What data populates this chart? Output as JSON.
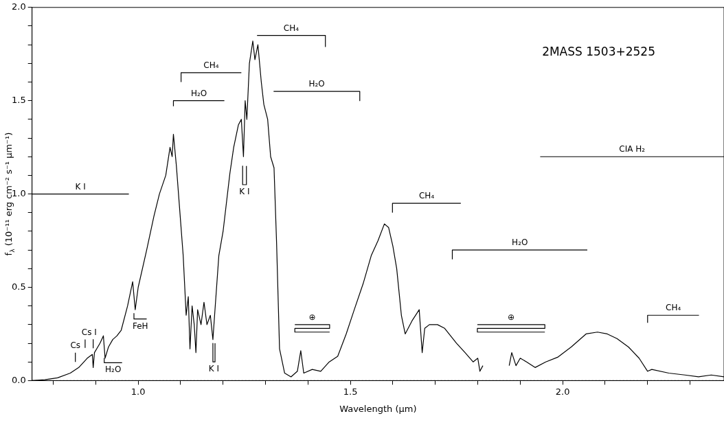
{
  "chart_data": {
    "type": "line",
    "xlabel": "Wavelength (μm)",
    "ylabel": "f$_{λ}$ (10⁻¹¹ erg cm⁻² s⁻¹ μm⁻¹)",
    "xlim": [
      0.75,
      2.38
    ],
    "xticks": [
      {
        "value": 0.8,
        "label": null
      },
      {
        "value": 0.9,
        "label": null
      },
      {
        "value": 1.0,
        "label": "1.0"
      },
      {
        "value": 1.1,
        "label": null
      },
      {
        "value": 1.2,
        "label": null
      },
      {
        "value": 1.3,
        "label": null
      },
      {
        "value": 1.4,
        "label": null
      },
      {
        "value": 1.5,
        "label": "1.5"
      },
      {
        "value": 1.6,
        "label": null
      },
      {
        "value": 1.7,
        "label": null
      },
      {
        "value": 1.8,
        "label": null
      },
      {
        "value": 1.9,
        "label": null
      },
      {
        "value": 2.0,
        "label": "2.0"
      },
      {
        "value": 2.1,
        "label": null
      },
      {
        "value": 2.2,
        "label": null
      },
      {
        "value": 2.3,
        "label": null
      }
    ],
    "ylim": [
      0,
      2
    ],
    "yticks": [
      {
        "value": 0,
        "label": "0.0"
      },
      {
        "value": 0.1,
        "label": null
      },
      {
        "value": 0.2,
        "label": null
      },
      {
        "value": 0.3,
        "label": null
      },
      {
        "value": 0.4,
        "label": null
      },
      {
        "value": 0.5,
        "label": "0.5"
      },
      {
        "value": 0.6,
        "label": null
      },
      {
        "value": 0.7,
        "label": null
      },
      {
        "value": 0.8,
        "label": null
      },
      {
        "value": 0.9,
        "label": null
      },
      {
        "value": 1.0,
        "label": "1.0"
      },
      {
        "value": 1.1,
        "label": null
      },
      {
        "value": 1.2,
        "label": null
      },
      {
        "value": 1.3,
        "label": null
      },
      {
        "value": 1.4,
        "label": null
      },
      {
        "value": 1.5,
        "label": "1.5"
      },
      {
        "value": 1.6,
        "label": null
      },
      {
        "value": 1.7,
        "label": null
      },
      {
        "value": 1.8,
        "label": null
      },
      {
        "value": 1.9,
        "label": null
      },
      {
        "value": 2.0,
        "label": "2.0"
      }
    ],
    "grid": false,
    "legend": false,
    "marker": "none",
    "line_style": "solid",
    "ref_lines": [
      {
        "axis": "y",
        "value": 0,
        "line_style": "dotted",
        "color": "#000000"
      }
    ],
    "series": [
      {
        "color": "#000000",
        "x": [
          0.75,
          0.78,
          0.81,
          0.84,
          0.86,
          0.88,
          0.892,
          0.894,
          0.897,
          0.91,
          0.918,
          0.922,
          0.93,
          0.94,
          0.95,
          0.96,
          0.975,
          0.987,
          0.993,
          1.0,
          1.02,
          1.037,
          1.05,
          1.065,
          1.075,
          1.08,
          1.083,
          1.09,
          1.1,
          1.106,
          1.113,
          1.118,
          1.122,
          1.127,
          1.132,
          1.136,
          1.14,
          1.148,
          1.155,
          1.162,
          1.17,
          1.176,
          1.18,
          1.19,
          1.2,
          1.216,
          1.225,
          1.236,
          1.243,
          1.248,
          1.252,
          1.256,
          1.262,
          1.27,
          1.275,
          1.282,
          1.29,
          1.296,
          1.305,
          1.312,
          1.32,
          1.326,
          1.333,
          1.345,
          1.36,
          1.375,
          1.383,
          1.39,
          1.41,
          1.43,
          1.45,
          1.47,
          1.49,
          1.509,
          1.53,
          1.549,
          1.565,
          1.58,
          1.59,
          1.6,
          1.609,
          1.62,
          1.629,
          1.645,
          1.662,
          1.669,
          1.675,
          1.686,
          1.705,
          1.722,
          1.75,
          1.77,
          1.789,
          1.8,
          1.805,
          1.812,
          1.84,
          1.874,
          1.88,
          1.89,
          1.9,
          1.915,
          1.935,
          1.96,
          1.988,
          2.02,
          2.055,
          2.082,
          2.105,
          2.128,
          2.155,
          2.18,
          2.2,
          2.21,
          2.25,
          2.288,
          2.32,
          2.35,
          2.38
        ],
        "values": [
          0.0,
          0.005,
          0.015,
          0.04,
          0.07,
          0.12,
          0.14,
          0.07,
          0.15,
          0.2,
          0.24,
          0.12,
          0.18,
          0.22,
          0.24,
          0.27,
          0.4,
          0.53,
          0.38,
          0.5,
          0.7,
          0.88,
          1.0,
          1.1,
          1.25,
          1.2,
          1.32,
          1.15,
          0.85,
          0.67,
          0.35,
          0.45,
          0.17,
          0.4,
          0.3,
          0.15,
          0.38,
          0.3,
          0.42,
          0.3,
          0.35,
          0.22,
          0.35,
          0.67,
          0.8,
          1.11,
          1.25,
          1.37,
          1.4,
          1.2,
          1.5,
          1.4,
          1.7,
          1.82,
          1.72,
          1.8,
          1.6,
          1.48,
          1.4,
          1.2,
          1.14,
          0.74,
          0.17,
          0.04,
          0.02,
          0.05,
          0.16,
          0.04,
          0.06,
          0.05,
          0.1,
          0.13,
          0.25,
          0.38,
          0.52,
          0.67,
          0.75,
          0.84,
          0.82,
          0.72,
          0.6,
          0.35,
          0.25,
          0.32,
          0.38,
          0.15,
          0.28,
          0.3,
          0.3,
          0.28,
          0.2,
          0.15,
          0.1,
          0.12,
          0.05,
          0.08,
          null,
          0.08,
          0.15,
          0.08,
          0.12,
          0.1,
          0.07,
          0.1,
          0.125,
          0.18,
          0.25,
          0.26,
          0.25,
          0.225,
          0.18,
          0.12,
          0.05,
          0.06,
          0.04,
          0.03,
          0.02,
          0.03,
          0.02
        ]
      },
      {
        "name": "K I",
        "color": "#000000",
        "x": [
          0.75,
          0.978
        ],
        "values": [
          1.0,
          1.0
        ]
      },
      {
        "name": "H₂O",
        "color": "#000000",
        "x": [
          1.083,
          1.083,
          1.203
        ],
        "values": [
          1.47,
          1.5,
          1.5
        ]
      },
      {
        "name": "CH₄",
        "color": "#000000",
        "x": [
          1.101,
          1.101,
          1.243
        ],
        "values": [
          1.6,
          1.65,
          1.65
        ]
      },
      {
        "name": "CH₄",
        "color": "#000000",
        "x": [
          1.28,
          1.441,
          1.441
        ],
        "values": [
          1.85,
          1.85,
          1.79
        ]
      },
      {
        "name": "H₂O",
        "color": "#000000",
        "x": [
          1.319,
          1.522,
          1.522
        ],
        "values": [
          1.55,
          1.55,
          1.5
        ]
      },
      {
        "name": "CH₄",
        "color": "#000000",
        "x": [
          1.599,
          1.599,
          1.76
        ],
        "values": [
          0.9,
          0.95,
          0.95
        ]
      },
      {
        "name": "H₂O",
        "color": "#000000",
        "x": [
          1.74,
          1.74,
          2.058
        ],
        "values": [
          0.65,
          0.7,
          0.7
        ]
      },
      {
        "name": "CIA H₂",
        "color": "#000000",
        "x": [
          1.947,
          2.38
        ],
        "values": [
          1.2,
          1.2
        ]
      },
      {
        "name": "CH₄",
        "color": "#000000",
        "x": [
          2.2,
          2.2,
          2.321
        ],
        "values": [
          0.31,
          0.35,
          0.35
        ]
      },
      {
        "name": "H₂O",
        "color": "#000000",
        "x": [
          0.92,
          0.92,
          0.962
        ],
        "values": [
          0.12,
          0.096,
          0.096
        ]
      },
      {
        "name": "FeH",
        "color": "#000000",
        "x": [
          0.99,
          0.99,
          1.02
        ],
        "values": [
          0.36,
          0.33,
          0.33
        ]
      },
      {
        "name": "Cs",
        "color": "#000000",
        "x": [
          0.852,
          0.852
        ],
        "values": [
          0.1,
          0.15
        ]
      },
      {
        "name": "Cs I",
        "color": "#000000",
        "x": [
          0.875,
          0.875,
          0.884,
          0.894,
          0.894
        ],
        "values": [
          0.175,
          0.22,
          null,
          0.22,
          0.175
        ]
      },
      {
        "name": "K I",
        "color": "#000000",
        "x": [
          1.176,
          1.176,
          1.181,
          1.181
        ],
        "values": [
          0.2,
          0.1,
          0.1,
          0.2
        ]
      },
      {
        "name": "K I",
        "color": "#000000",
        "x": [
          1.246,
          1.246,
          1.255,
          1.255
        ],
        "values": [
          1.15,
          1.05,
          1.05,
          1.15
        ]
      },
      {
        "name": "⊕",
        "color": "#000000",
        "x": [
          1.369,
          1.451,
          1.451,
          1.369,
          1.369,
          1.451
        ],
        "values": [
          0.3,
          0.3,
          0.28,
          0.28,
          0.26,
          0.26
        ]
      },
      {
        "name": "⊕",
        "color": "#000000",
        "x": [
          1.799,
          1.958,
          1.958,
          1.799,
          1.799,
          1.958
        ],
        "values": [
          0.3,
          0.3,
          0.28,
          0.28,
          0.26,
          0.26
        ]
      }
    ],
    "annotations": [
      "2MASS 1503+2525"
    ]
  }
}
